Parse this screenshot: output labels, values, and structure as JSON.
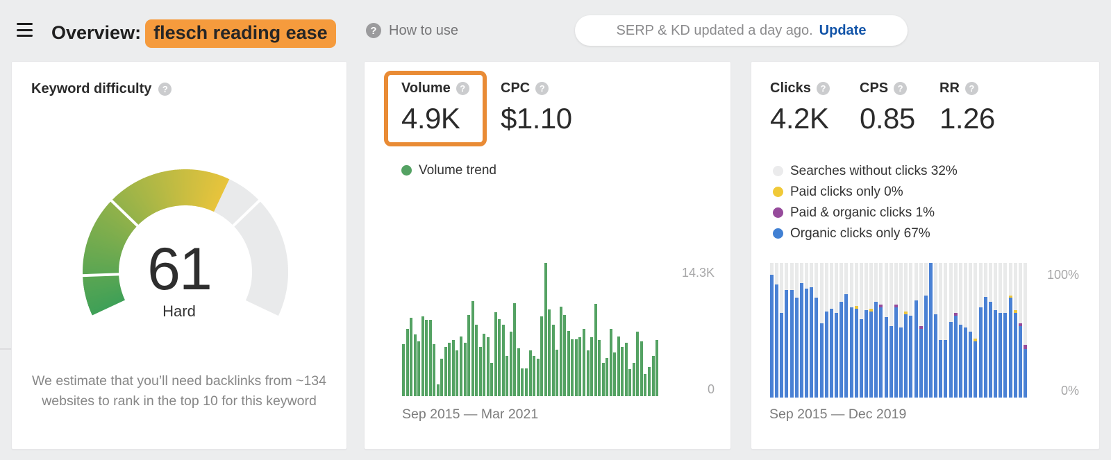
{
  "header": {
    "title_prefix": "Overview:",
    "keyword": "flesch reading ease",
    "help_label": "How to use",
    "update_status": "SERP & KD updated a day ago.",
    "update_action": "Update"
  },
  "colors": {
    "highlight_orange": "#f59b3d",
    "annotation_orange": "#e98b35",
    "update_blue": "#1254a8"
  },
  "cards": {
    "difficulty": {
      "title": "Keyword difficulty",
      "value": "61",
      "difficulty_label": "Hard",
      "description": "We estimate that you’ll need backlinks from ~134 websites to rank in the top 10 for this keyword",
      "gauge": {
        "fill_percent": 61,
        "dividers": [
          10,
          30,
          70
        ],
        "start_color": "#3fa057",
        "end_color": "#e9c43c",
        "empty_color": "#e9eaeb"
      }
    },
    "volume": {
      "metrics": [
        {
          "label": "Volume",
          "value": "4.9K"
        },
        {
          "label": "CPC",
          "value": "$1.10"
        }
      ],
      "legend": [
        {
          "label": "Volume trend",
          "color": "#54a263"
        }
      ]
    },
    "clicks": {
      "metrics": [
        {
          "label": "Clicks",
          "value": "4.2K"
        },
        {
          "label": "CPS",
          "value": "0.85"
        },
        {
          "label": "RR",
          "value": "1.26"
        }
      ],
      "legend": [
        {
          "label": "Searches without clicks 32%",
          "color": "#ebebec"
        },
        {
          "label": "Paid clicks only 0%",
          "color": "#f0c938"
        },
        {
          "label": "Paid & organic clicks 1%",
          "color": "#964b9b"
        },
        {
          "label": "Organic clicks only 67%",
          "color": "#4180d3"
        }
      ]
    }
  },
  "chart_data": [
    {
      "type": "bar",
      "title": "Volume trend",
      "x_range_label": "Sep 2015 — Mar 2021",
      "y_max_label": "14.3K",
      "y_min_label": "0",
      "ylim": [
        0,
        14300
      ],
      "bar_color": "#54a263",
      "values": [
        5600,
        7200,
        8400,
        6600,
        5900,
        8600,
        8200,
        8200,
        5600,
        1300,
        4000,
        5300,
        5700,
        6000,
        4900,
        6400,
        5700,
        8700,
        10200,
        7700,
        5300,
        6700,
        6300,
        3600,
        9000,
        8300,
        7700,
        4300,
        6900,
        10000,
        5100,
        3000,
        3000,
        4900,
        4300,
        4000,
        8600,
        14300,
        9300,
        7700,
        5000,
        9600,
        8700,
        7000,
        6100,
        6100,
        6300,
        7200,
        4900,
        6300,
        9900,
        6000,
        3600,
        4100,
        7200,
        4700,
        6400,
        5300,
        5700,
        2900,
        3600,
        6900,
        5900,
        2400,
        3100,
        4300,
        6000
      ]
    },
    {
      "type": "bar",
      "stacked": true,
      "title": "Clicks distribution",
      "x_range_label": "Sep 2015 — Dec 2019",
      "y_max_label": "100%",
      "y_min_label": "0%",
      "ylim": [
        0,
        100
      ],
      "no_click_fill": "#e9eaea",
      "series": [
        {
          "name": "Organic clicks only",
          "color": "#4a81d4",
          "values": [
            91,
            84,
            63,
            80,
            80,
            74,
            85,
            81,
            82,
            74,
            55,
            64,
            66,
            63,
            71,
            77,
            67,
            66,
            58,
            65,
            64,
            71,
            67,
            60,
            53,
            67,
            52,
            62,
            61,
            72,
            51,
            76,
            100,
            62,
            43,
            43,
            56,
            61,
            54,
            52,
            49,
            42,
            67,
            75,
            71,
            65,
            63,
            63,
            74,
            63,
            53,
            36
          ]
        },
        {
          "name": "Paid & organic clicks",
          "color": "#964b9b",
          "values": [
            0,
            0,
            0,
            0,
            0,
            0,
            0,
            0,
            0,
            0,
            0,
            0,
            0,
            0,
            0,
            0,
            0,
            0,
            0,
            0,
            0,
            0,
            2,
            0,
            0,
            2,
            0,
            0,
            0,
            0,
            2,
            0,
            0,
            0,
            0,
            0,
            0,
            2,
            0,
            0,
            0,
            0,
            0,
            0,
            0,
            0,
            0,
            0,
            0,
            0,
            2,
            3
          ]
        },
        {
          "name": "Paid clicks only",
          "color": "#eec63d",
          "values": [
            0,
            0,
            0,
            0,
            0,
            0,
            0,
            0,
            0,
            0,
            0,
            0,
            0,
            0,
            0,
            0,
            0,
            2,
            0,
            0,
            2,
            0,
            0,
            0,
            0,
            0,
            0,
            2,
            0,
            0,
            0,
            0,
            0,
            0,
            0,
            0,
            0,
            0,
            0,
            0,
            0,
            2,
            0,
            0,
            0,
            0,
            0,
            0,
            2,
            2,
            0,
            0
          ]
        }
      ]
    }
  ]
}
